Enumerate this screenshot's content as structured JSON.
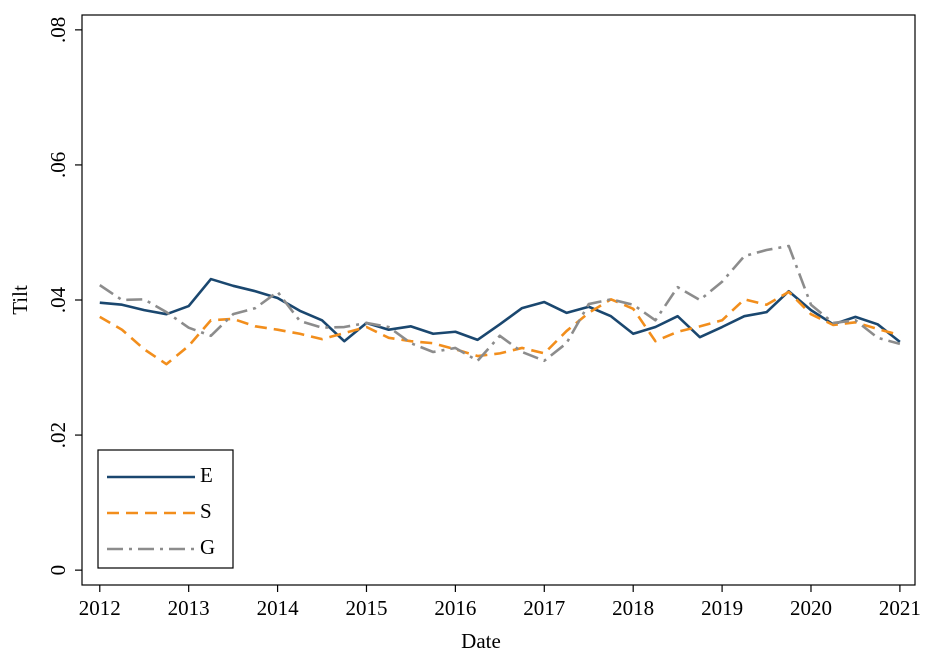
{
  "chart_data": {
    "type": "line",
    "x_label": "Date",
    "y_label": "Tilt",
    "x": [
      2012,
      2012.25,
      2012.5,
      2012.75,
      2013,
      2013.25,
      2013.5,
      2013.75,
      2014,
      2014.25,
      2014.5,
      2014.75,
      2015,
      2015.25,
      2015.5,
      2015.75,
      2016,
      2016.25,
      2016.5,
      2016.75,
      2017,
      2017.25,
      2017.5,
      2017.75,
      2018,
      2018.25,
      2018.5,
      2018.75,
      2019,
      2019.25,
      2019.5,
      2019.75,
      2020,
      2020.25,
      2020.5,
      2020.75,
      2021
    ],
    "series": [
      {
        "name": "E",
        "color": "#1a476f",
        "dash": "solid",
        "values": [
          0.0396,
          0.0393,
          0.0385,
          0.0379,
          0.0391,
          0.0431,
          0.0421,
          0.0413,
          0.0403,
          0.0384,
          0.037,
          0.0339,
          0.0366,
          0.0356,
          0.0361,
          0.035,
          0.0353,
          0.0341,
          0.0364,
          0.0388,
          0.0397,
          0.0381,
          0.039,
          0.0376,
          0.035,
          0.036,
          0.0376,
          0.0345,
          0.036,
          0.0376,
          0.0382,
          0.0413,
          0.0385,
          0.0364,
          0.0375,
          0.0364,
          0.0338
        ]
      },
      {
        "name": "S",
        "color": "#f28e1c",
        "dash": "dashed",
        "values": [
          0.0375,
          0.0356,
          0.0327,
          0.0305,
          0.0332,
          0.037,
          0.0372,
          0.0361,
          0.0356,
          0.035,
          0.0342,
          0.0351,
          0.036,
          0.0344,
          0.0339,
          0.0336,
          0.0327,
          0.0317,
          0.0321,
          0.0329,
          0.0321,
          0.0354,
          0.0381,
          0.0401,
          0.0387,
          0.0339,
          0.0353,
          0.0361,
          0.037,
          0.0401,
          0.0393,
          0.0412,
          0.0379,
          0.0363,
          0.0367,
          0.0357,
          0.0348
        ]
      },
      {
        "name": "G",
        "color": "#8c8c8c",
        "dash": "dashdot",
        "values": [
          0.0422,
          0.04,
          0.0401,
          0.0382,
          0.0359,
          0.0347,
          0.0379,
          0.0388,
          0.0412,
          0.0369,
          0.0359,
          0.036,
          0.0366,
          0.036,
          0.0336,
          0.0323,
          0.0329,
          0.031,
          0.0347,
          0.0323,
          0.031,
          0.0336,
          0.0394,
          0.0401,
          0.0393,
          0.037,
          0.0419,
          0.04,
          0.0427,
          0.0465,
          0.0474,
          0.048,
          0.0393,
          0.0366,
          0.037,
          0.0344,
          0.0335
        ]
      }
    ],
    "xlim": [
      2011.8,
      2021.17
    ],
    "ylim": [
      -0.0022,
      0.0822
    ],
    "xticks": [
      2012,
      2013,
      2014,
      2015,
      2016,
      2017,
      2018,
      2019,
      2020,
      2021
    ],
    "yticks": [
      0,
      {
        "value": 0.02,
        "label": ".02"
      },
      {
        "value": 0.04,
        "label": ".04"
      },
      {
        "value": 0.06,
        "label": ".06"
      },
      {
        "value": 0.08,
        "label": ".08"
      }
    ],
    "grid": false,
    "legend": "lower left"
  }
}
